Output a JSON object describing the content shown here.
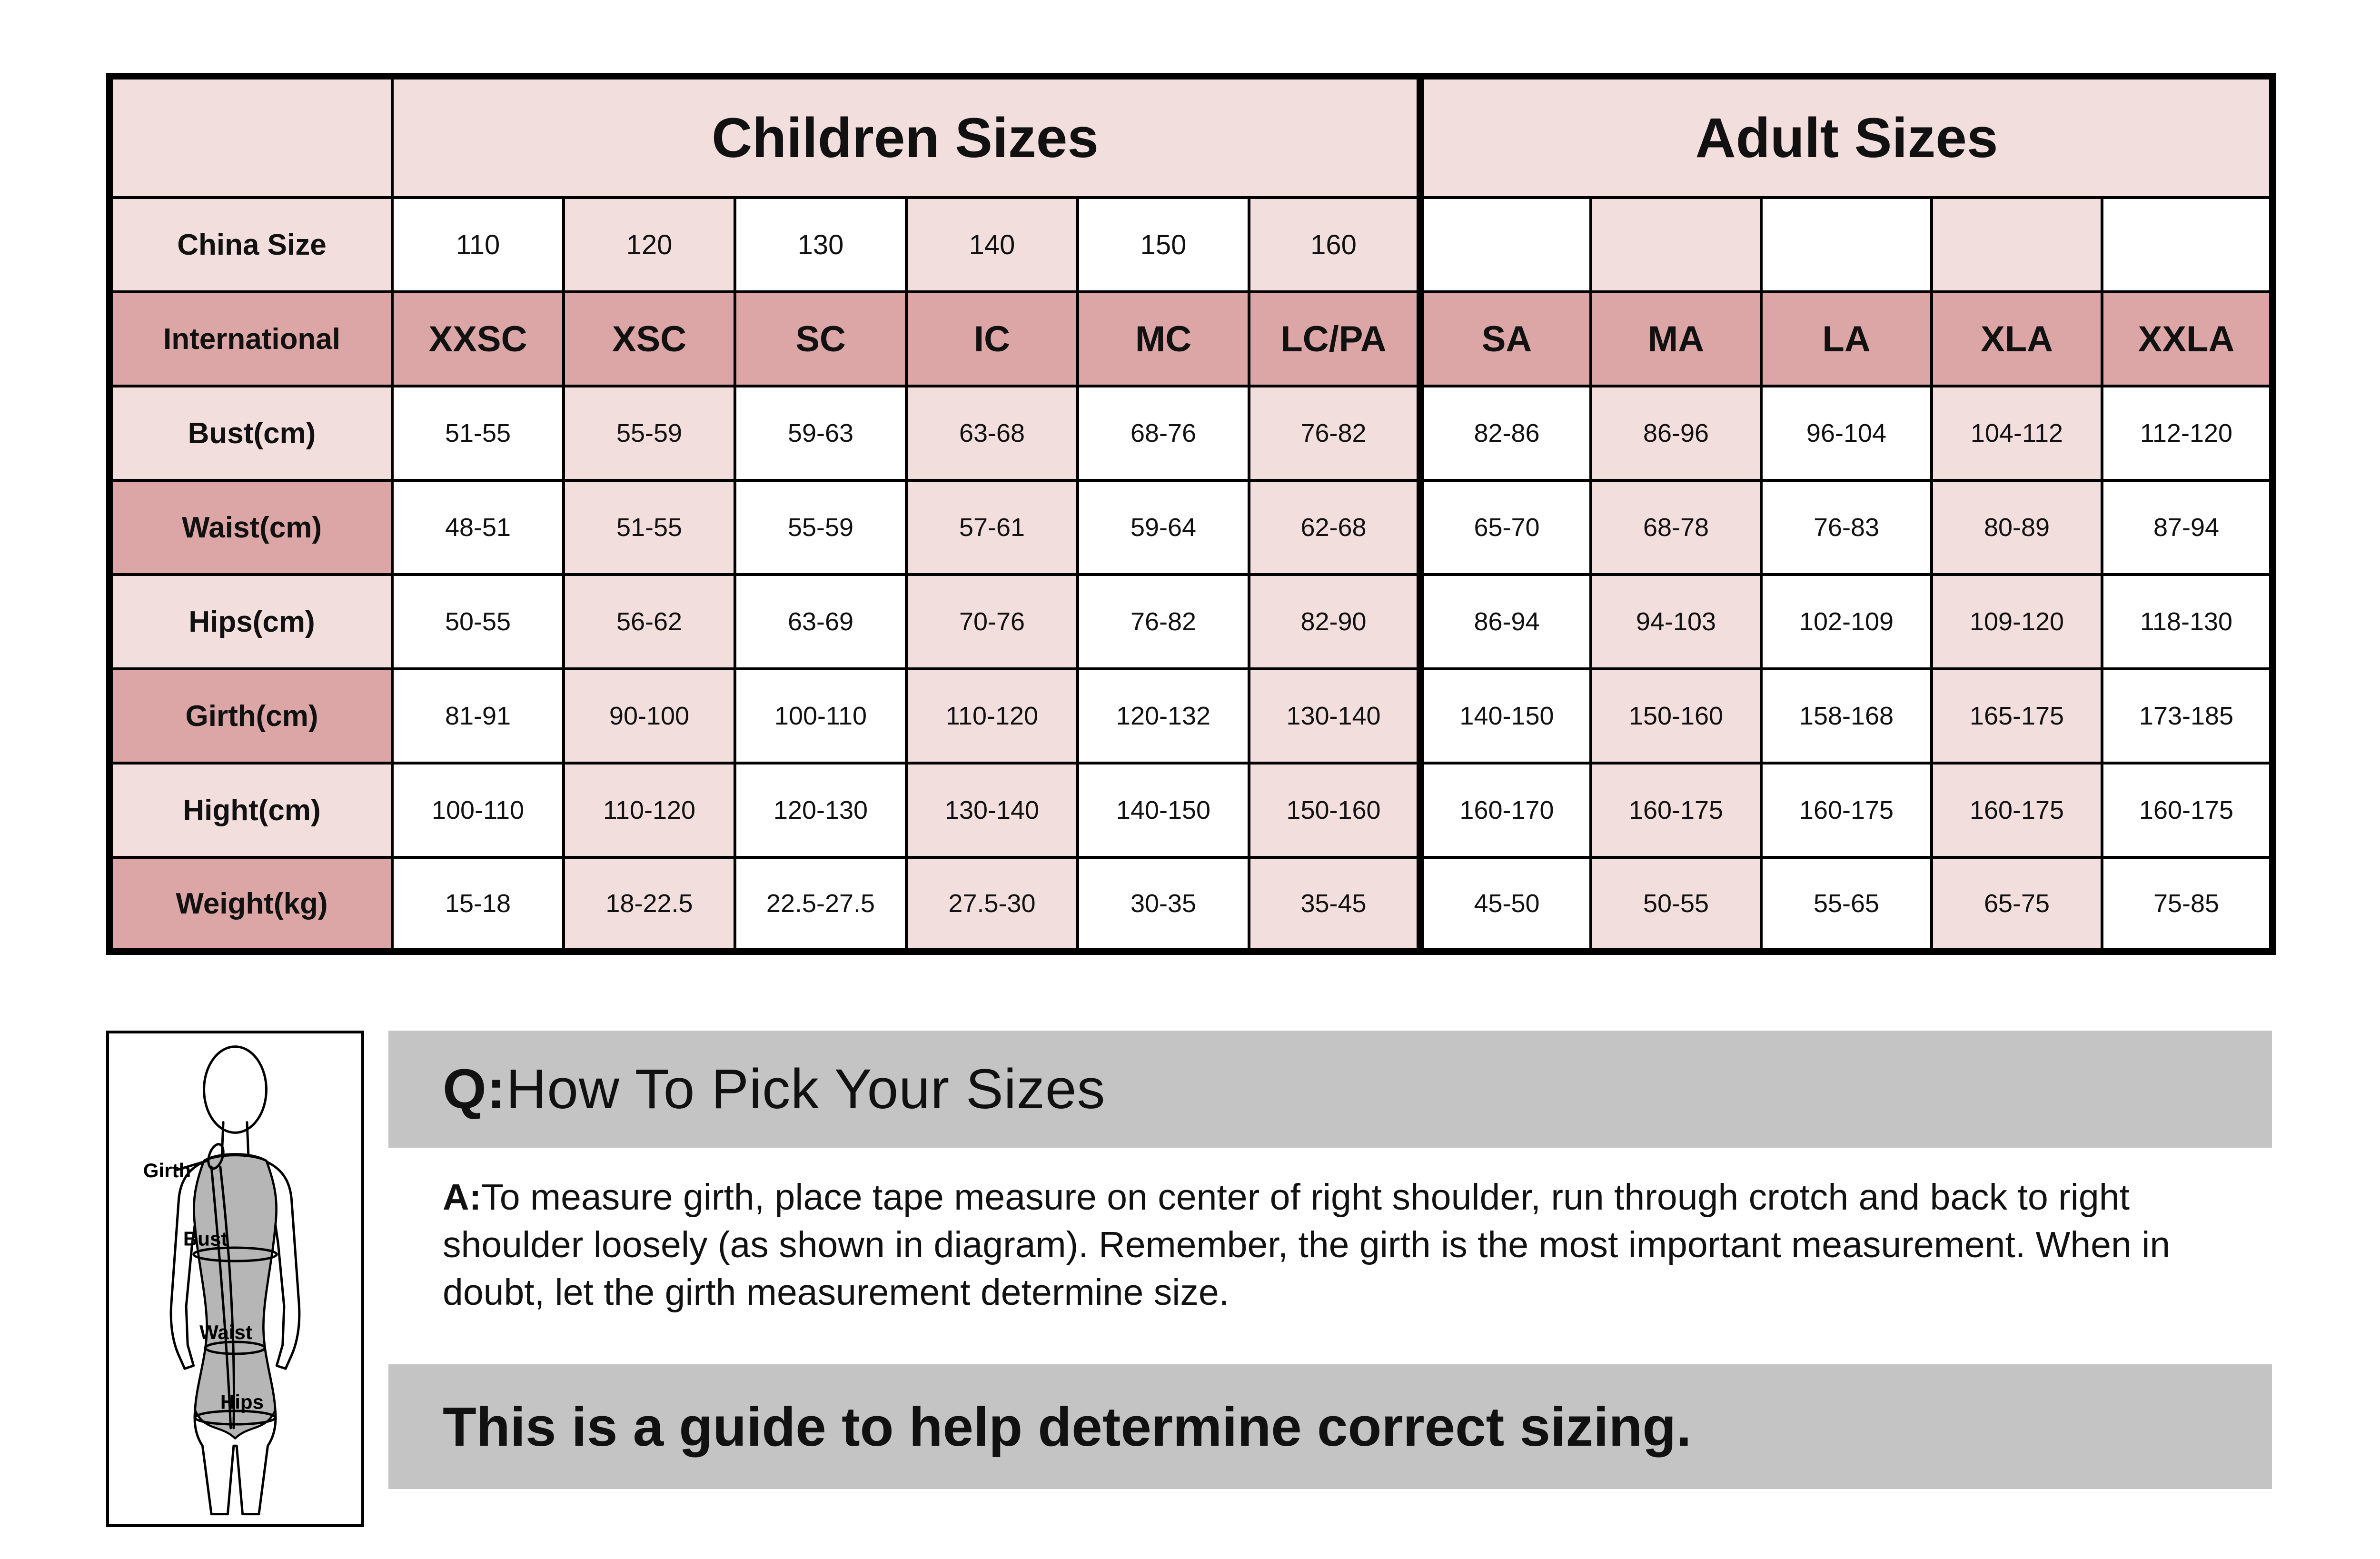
{
  "chart_data": {
    "type": "table",
    "title_groups": [
      {
        "label": "Children Sizes",
        "span": 6
      },
      {
        "label": "Adult Sizes",
        "span": 5
      }
    ],
    "rows": [
      {
        "label": "China Size",
        "cells": [
          "110",
          "120",
          "130",
          "140",
          "150",
          "160",
          "",
          "",
          "",
          "",
          ""
        ]
      },
      {
        "label": "International",
        "cells": [
          "XXSC",
          "XSC",
          "SC",
          "IC",
          "MC",
          "LC/PA",
          "SA",
          "MA",
          "LA",
          "XLA",
          "XXLA"
        ]
      },
      {
        "label": "Bust(cm)",
        "cells": [
          "51-55",
          "55-59",
          "59-63",
          "63-68",
          "68-76",
          "76-82",
          "82-86",
          "86-96",
          "96-104",
          "104-112",
          "112-120"
        ]
      },
      {
        "label": "Waist(cm)",
        "cells": [
          "48-51",
          "51-55",
          "55-59",
          "57-61",
          "59-64",
          "62-68",
          "65-70",
          "68-78",
          "76-83",
          "80-89",
          "87-94"
        ]
      },
      {
        "label": "Hips(cm)",
        "cells": [
          "50-55",
          "56-62",
          "63-69",
          "70-76",
          "76-82",
          "82-90",
          "86-94",
          "94-103",
          "102-109",
          "109-120",
          "118-130"
        ]
      },
      {
        "label": "Girth(cm)",
        "cells": [
          "81-91",
          "90-100",
          "100-110",
          "110-120",
          "120-132",
          "130-140",
          "140-150",
          "150-160",
          "158-168",
          "165-175",
          "173-185"
        ]
      },
      {
        "label": "Hight(cm)",
        "cells": [
          "100-110",
          "110-120",
          "120-130",
          "130-140",
          "140-150",
          "150-160",
          "160-170",
          "160-175",
          "160-175",
          "160-175",
          "160-175"
        ]
      },
      {
        "label": "Weight(kg)",
        "cells": [
          "15-18",
          "18-22.5",
          "22.5-27.5",
          "27.5-30",
          "30-35",
          "35-45",
          "45-50",
          "50-55",
          "55-65",
          "65-75",
          "75-85"
        ]
      }
    ]
  },
  "qa": {
    "question_prefix": "Q:",
    "question": "How To Pick Your Sizes",
    "answer_prefix": "A:",
    "answer": "To measure girth, place tape measure on center of right shoulder, run through crotch and back to right shoulder loosely (as shown in diagram). Remember, the girth is the most important measurement. When in doubt, let the girth measurement determine size.",
    "footer": "This is a guide to help determine correct sizing."
  },
  "diagram": {
    "labels": {
      "girth": "Girth",
      "bust": "Bust",
      "waist": "Waist",
      "hips": "Hips"
    }
  },
  "colors": {
    "pink_light": "#f3dede",
    "pink_dark": "#dca6a6",
    "banner_gray": "#c4c4c4",
    "figure_gray": "#b6b6b6",
    "border_black": "#000000"
  }
}
